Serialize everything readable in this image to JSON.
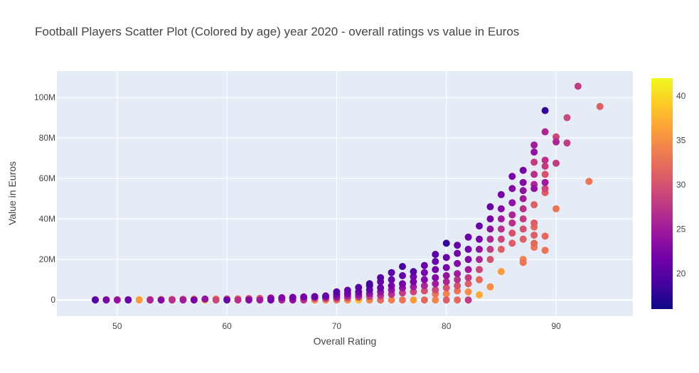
{
  "chart_data": {
    "type": "scatter",
    "title": "Football Players Scatter Plot (Colored by age) year 2020 - overall ratings vs value in Euros",
    "xlabel": "Overall Rating",
    "ylabel": "Value in Euros",
    "xlim": [
      44.5,
      97
    ],
    "ylim": [
      -8000000,
      113000000
    ],
    "x_ticks": [
      50,
      60,
      70,
      80,
      90
    ],
    "y_ticks": [
      0,
      20000000,
      40000000,
      60000000,
      80000000,
      100000000
    ],
    "y_tick_labels": [
      "0",
      "20M",
      "40M",
      "60M",
      "80M",
      "100M"
    ],
    "grid": true,
    "background": "#e5ecf6",
    "colorbar": {
      "title": "",
      "range": [
        16,
        42
      ],
      "ticks": [
        20,
        25,
        30,
        35,
        40
      ],
      "colorscale": [
        "#0d0887",
        "#46039f",
        "#7201a8",
        "#9c179e",
        "#bd3786",
        "#d8576b",
        "#ed7953",
        "#fb9f3a",
        "#fdca26",
        "#f0f921"
      ]
    },
    "points": [
      [
        48,
        0,
        20
      ],
      [
        48,
        100000,
        28
      ],
      [
        48,
        150000,
        35
      ],
      [
        49,
        0,
        22
      ],
      [
        49,
        120000,
        30
      ],
      [
        50,
        0,
        24
      ],
      [
        50,
        150000,
        33
      ],
      [
        51,
        0,
        21
      ],
      [
        51,
        170000,
        29
      ],
      [
        52,
        0,
        36
      ],
      [
        52,
        200000,
        38
      ],
      [
        53,
        0,
        26
      ],
      [
        53,
        220000,
        31
      ],
      [
        54,
        0,
        23
      ],
      [
        54,
        250000,
        34
      ],
      [
        55,
        0,
        27
      ],
      [
        55,
        300000,
        32
      ],
      [
        56,
        0,
        25
      ],
      [
        56,
        350000,
        30
      ],
      [
        57,
        0,
        22
      ],
      [
        57,
        400000,
        33
      ],
      [
        58,
        0,
        37
      ],
      [
        58,
        450000,
        24
      ],
      [
        59,
        0,
        29
      ],
      [
        59,
        500000,
        34
      ],
      [
        60,
        0,
        21
      ],
      [
        60,
        550000,
        30
      ],
      [
        61,
        0,
        27
      ],
      [
        61,
        600000,
        33
      ],
      [
        62,
        0,
        23
      ],
      [
        62,
        700000,
        29
      ],
      [
        62,
        400000,
        33
      ],
      [
        63,
        0,
        25
      ],
      [
        63,
        800000,
        31
      ],
      [
        63,
        500000,
        34
      ],
      [
        64,
        0,
        22
      ],
      [
        64,
        1000000,
        24
      ],
      [
        64,
        600000,
        32
      ],
      [
        65,
        0,
        26
      ],
      [
        65,
        1100000,
        23
      ],
      [
        65,
        700000,
        31
      ],
      [
        66,
        0,
        24
      ],
      [
        66,
        1300000,
        22
      ],
      [
        66,
        800000,
        30
      ],
      [
        67,
        0,
        27
      ],
      [
        67,
        1500000,
        22
      ],
      [
        67,
        900000,
        29
      ],
      [
        68,
        0,
        34
      ],
      [
        68,
        1700000,
        21
      ],
      [
        68,
        1000000,
        27
      ],
      [
        69,
        0,
        35
      ],
      [
        69,
        2000000,
        21
      ],
      [
        69,
        1200000,
        25
      ],
      [
        69,
        600000,
        31
      ],
      [
        70,
        0,
        33
      ],
      [
        70,
        2600000,
        22
      ],
      [
        70,
        1500000,
        24
      ],
      [
        70,
        800000,
        29
      ],
      [
        70,
        4000000,
        20
      ],
      [
        71,
        0,
        35
      ],
      [
        71,
        3200000,
        22
      ],
      [
        71,
        2000000,
        25
      ],
      [
        71,
        1000000,
        30
      ],
      [
        71,
        4800000,
        21
      ],
      [
        72,
        0,
        38
      ],
      [
        72,
        300000,
        40
      ],
      [
        72,
        4000000,
        21
      ],
      [
        72,
        2500000,
        24
      ],
      [
        72,
        1400000,
        28
      ],
      [
        72,
        6200000,
        20
      ],
      [
        73,
        0,
        34
      ],
      [
        73,
        5000000,
        21
      ],
      [
        73,
        3200000,
        24
      ],
      [
        73,
        1800000,
        28
      ],
      [
        73,
        7000000,
        20
      ],
      [
        73,
        8000000,
        19
      ],
      [
        74,
        0,
        32
      ],
      [
        74,
        6000000,
        21
      ],
      [
        74,
        4000000,
        24
      ],
      [
        74,
        2200000,
        27
      ],
      [
        74,
        9000000,
        21
      ],
      [
        74,
        11000000,
        20
      ],
      [
        75,
        0,
        34
      ],
      [
        75,
        7000000,
        22
      ],
      [
        75,
        5000000,
        24
      ],
      [
        75,
        2800000,
        27
      ],
      [
        75,
        10000000,
        21
      ],
      [
        75,
        13500000,
        20
      ],
      [
        76,
        0,
        33
      ],
      [
        76,
        8000000,
        22
      ],
      [
        76,
        6000000,
        24
      ],
      [
        76,
        3500000,
        28
      ],
      [
        76,
        12000000,
        21
      ],
      [
        76,
        16500000,
        19
      ],
      [
        77,
        0,
        36
      ],
      [
        77,
        9000000,
        22
      ],
      [
        77,
        6500000,
        25
      ],
      [
        77,
        4000000,
        29
      ],
      [
        77,
        11500000,
        22
      ],
      [
        77,
        14000000,
        20
      ],
      [
        78,
        0,
        32
      ],
      [
        78,
        10000000,
        23
      ],
      [
        78,
        7000000,
        26
      ],
      [
        78,
        4500000,
        30
      ],
      [
        78,
        13500000,
        22
      ],
      [
        78,
        17000000,
        21
      ],
      [
        79,
        0,
        34
      ],
      [
        79,
        11000000,
        23
      ],
      [
        79,
        8000000,
        25
      ],
      [
        79,
        5000000,
        29
      ],
      [
        79,
        15000000,
        22
      ],
      [
        79,
        19000000,
        21
      ],
      [
        79,
        22500000,
        20
      ],
      [
        79,
        3000000,
        33
      ],
      [
        80,
        0,
        31
      ],
      [
        80,
        12000000,
        24
      ],
      [
        80,
        9000000,
        26
      ],
      [
        80,
        6000000,
        30
      ],
      [
        80,
        16000000,
        22
      ],
      [
        80,
        21000000,
        21
      ],
      [
        80,
        28000000,
        18
      ],
      [
        80,
        3000000,
        34
      ],
      [
        81,
        0,
        32
      ],
      [
        81,
        13000000,
        25
      ],
      [
        81,
        10000000,
        27
      ],
      [
        81,
        7000000,
        30
      ],
      [
        81,
        18000000,
        23
      ],
      [
        81,
        23000000,
        22
      ],
      [
        81,
        27000000,
        21
      ],
      [
        81,
        4500000,
        33
      ],
      [
        82,
        0,
        28
      ],
      [
        82,
        4000000,
        35
      ],
      [
        82,
        15000000,
        25
      ],
      [
        82,
        11000000,
        28
      ],
      [
        82,
        8000000,
        31
      ],
      [
        82,
        20000000,
        23
      ],
      [
        82,
        25000000,
        22
      ],
      [
        82,
        31000000,
        21
      ],
      [
        83,
        2500000,
        37
      ],
      [
        83,
        10000000,
        32
      ],
      [
        83,
        15000000,
        29
      ],
      [
        83,
        20000000,
        26
      ],
      [
        83,
        25000000,
        24
      ],
      [
        83,
        30000000,
        22
      ],
      [
        83,
        36500000,
        21
      ],
      [
        84,
        6500000,
        35
      ],
      [
        84,
        20000000,
        30
      ],
      [
        84,
        25000000,
        28
      ],
      [
        84,
        30000000,
        26
      ],
      [
        84,
        35000000,
        24
      ],
      [
        84,
        40000000,
        22
      ],
      [
        84,
        46000000,
        21
      ],
      [
        85,
        14000000,
        36
      ],
      [
        85,
        25000000,
        31
      ],
      [
        85,
        30000000,
        29
      ],
      [
        85,
        35000000,
        27
      ],
      [
        85,
        40000000,
        25
      ],
      [
        85,
        45000000,
        23
      ],
      [
        85,
        52000000,
        22
      ],
      [
        86,
        28000000,
        31
      ],
      [
        86,
        33000000,
        30
      ],
      [
        86,
        38000000,
        27
      ],
      [
        86,
        42000000,
        26
      ],
      [
        86,
        48000000,
        24
      ],
      [
        86,
        55000000,
        23
      ],
      [
        86,
        61000000,
        22
      ],
      [
        87,
        18500000,
        33
      ],
      [
        87,
        20000000,
        34
      ],
      [
        87,
        30000000,
        31
      ],
      [
        87,
        35000000,
        30
      ],
      [
        87,
        40000000,
        28
      ],
      [
        87,
        45000000,
        27
      ],
      [
        87,
        50000000,
        25
      ],
      [
        87,
        54000000,
        24
      ],
      [
        87,
        58000000,
        23
      ],
      [
        87,
        64000000,
        22
      ],
      [
        88,
        26000000,
        33
      ],
      [
        88,
        28000000,
        32
      ],
      [
        88,
        32000000,
        31
      ],
      [
        88,
        36000000,
        32
      ],
      [
        88,
        38000000,
        31
      ],
      [
        88,
        47000000,
        31
      ],
      [
        88,
        55000000,
        24
      ],
      [
        88,
        57000000,
        26
      ],
      [
        88,
        62000000,
        27
      ],
      [
        88,
        68000000,
        28
      ],
      [
        88,
        73000000,
        24
      ],
      [
        88,
        76500000,
        25
      ],
      [
        89,
        24500000,
        33
      ],
      [
        89,
        31500000,
        32
      ],
      [
        89,
        53000000,
        31
      ],
      [
        89,
        55000000,
        29
      ],
      [
        89,
        58000000,
        25
      ],
      [
        89,
        62000000,
        30
      ],
      [
        89,
        66000000,
        28
      ],
      [
        89,
        69000000,
        27
      ],
      [
        89,
        83000000,
        26
      ],
      [
        89,
        93500000,
        18
      ],
      [
        90,
        45000000,
        33
      ],
      [
        90,
        67500000,
        28
      ],
      [
        90,
        78000000,
        26
      ],
      [
        90,
        80500000,
        29
      ],
      [
        91,
        77500000,
        28
      ],
      [
        91,
        90000000,
        29
      ],
      [
        92,
        105500000,
        28
      ],
      [
        93,
        58500000,
        33
      ],
      [
        94,
        95500000,
        31
      ]
    ]
  }
}
